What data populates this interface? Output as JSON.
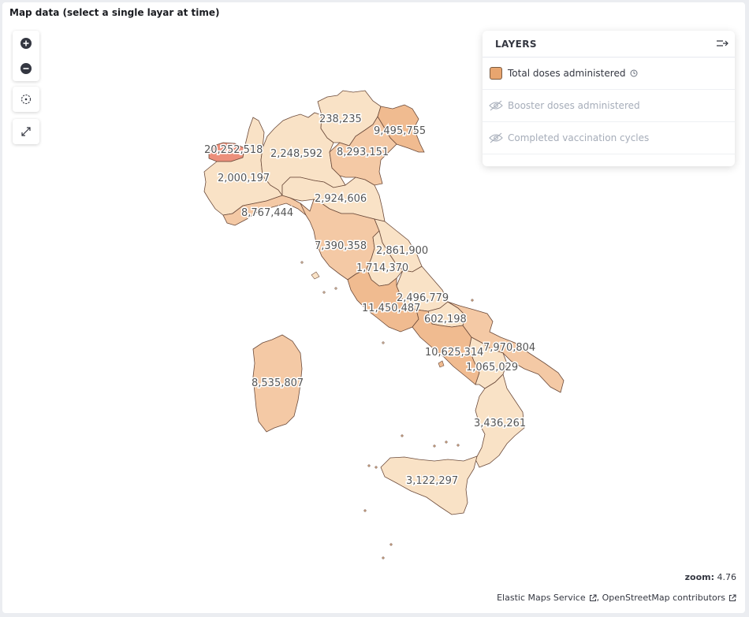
{
  "panel": {
    "title": "Map data (select a single layar at time)"
  },
  "controls": {
    "zoom_in": "plus-icon",
    "zoom_out": "minus-icon",
    "locate": "crosshair-icon",
    "fullscreen": "expand-icon"
  },
  "layers_panel": {
    "title": "LAYERS",
    "items": [
      {
        "label": "Total doses administered",
        "visible": true,
        "color": "#e8a56f"
      },
      {
        "label": "Booster doses administered",
        "visible": false
      },
      {
        "label": "Completed vaccination cycles",
        "visible": false
      }
    ]
  },
  "map": {
    "zoom_label": "zoom:",
    "zoom_value": "4.76",
    "attribution": {
      "ems": "Elastic Maps Service",
      "osm": "OpenStreetMap contributors"
    },
    "colors": {
      "high": "#ec8f7b",
      "mid": "#f0bb90",
      "midlow": "#f4c9a5",
      "low": "#f9e2c6",
      "stroke": "#6b4a3a"
    },
    "regions": [
      {
        "name": "Lombardia",
        "value": "20,252,518",
        "level": "high"
      },
      {
        "name": "Trentino-Alto Adige",
        "value": "2,000,197",
        "level": "low"
      },
      {
        "name": "Friuli-Venezia Giulia",
        "value": "2,248,592",
        "level": "low"
      },
      {
        "name": "Valle d'Aosta",
        "value": "238,235",
        "level": "low"
      },
      {
        "name": "Veneto",
        "value": "9,495,755",
        "level": "mid"
      },
      {
        "name": "Piemonte",
        "value": "8,293,151",
        "level": "midlow"
      },
      {
        "name": "Emilia-Romagna",
        "value": "8,767,444",
        "level": "midlow"
      },
      {
        "name": "Liguria",
        "value": "2,924,606",
        "level": "low"
      },
      {
        "name": "Toscana",
        "value": "7,390,358",
        "level": "midlow"
      },
      {
        "name": "Marche",
        "value": "2,861,900",
        "level": "low"
      },
      {
        "name": "Umbria",
        "value": "1,714,370",
        "level": "low"
      },
      {
        "name": "Abruzzo",
        "value": "2,496,779",
        "level": "low"
      },
      {
        "name": "Lazio",
        "value": "11,450,487",
        "level": "mid"
      },
      {
        "name": "Molise",
        "value": "602,198",
        "level": "low"
      },
      {
        "name": "Campania",
        "value": "10,625,314",
        "level": "mid"
      },
      {
        "name": "Puglia",
        "value": "7,970,804",
        "level": "midlow"
      },
      {
        "name": "Basilicata",
        "value": "1,065,029",
        "level": "low"
      },
      {
        "name": "Calabria",
        "value": "3,436,261",
        "level": "low"
      },
      {
        "name": "Sardegna",
        "value": "3,122,297",
        "level": "low"
      },
      {
        "name": "Sicilia",
        "value": "8,535,807",
        "level": "midlow"
      }
    ]
  }
}
